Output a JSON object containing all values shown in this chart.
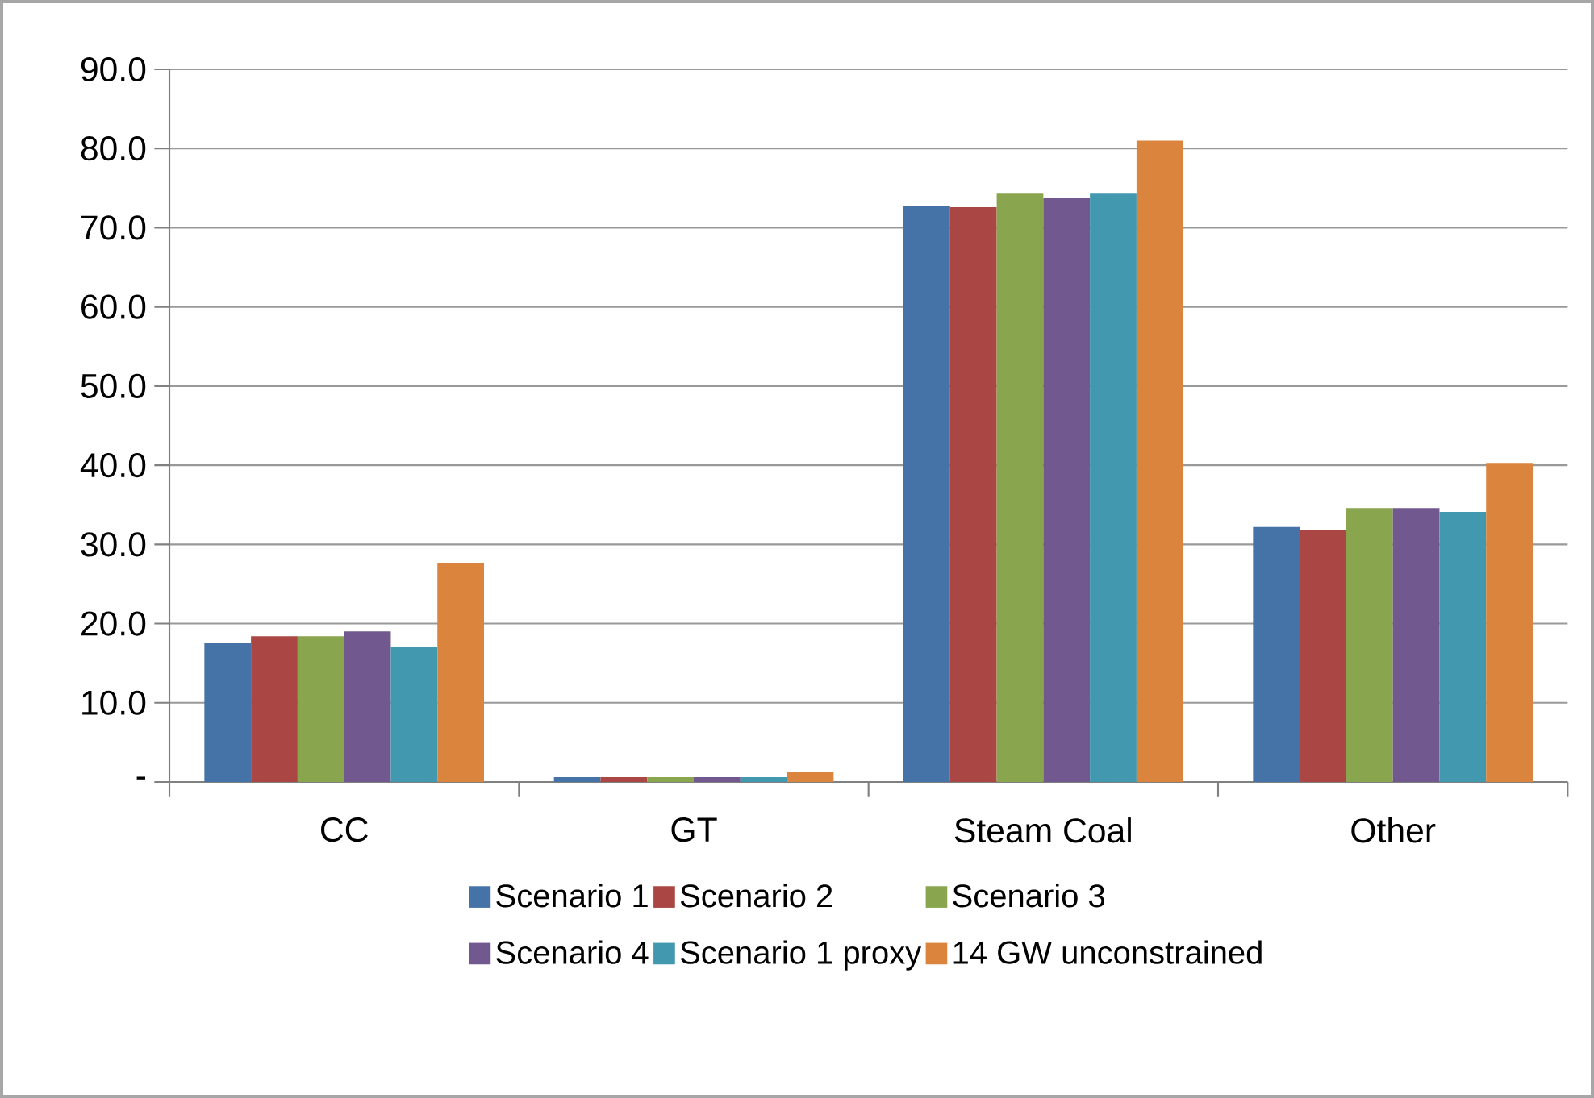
{
  "chart_data": {
    "type": "bar",
    "categories": [
      "CC",
      "GT",
      "Steam Coal",
      "Other"
    ],
    "series": [
      {
        "name": "Scenario 1",
        "color": "#4572a7",
        "values": [
          17.5,
          0.6,
          72.8,
          32.2
        ]
      },
      {
        "name": "Scenario 2",
        "color": "#aa4643",
        "values": [
          18.4,
          0.6,
          72.6,
          31.8
        ]
      },
      {
        "name": "Scenario 3",
        "color": "#89a54e",
        "values": [
          18.4,
          0.6,
          74.3,
          34.6
        ]
      },
      {
        "name": "Scenario 4",
        "color": "#71588f",
        "values": [
          19.0,
          0.6,
          73.8,
          34.6
        ]
      },
      {
        "name": "Scenario 1 proxy",
        "color": "#4198af",
        "values": [
          17.1,
          0.6,
          74.3,
          34.1
        ]
      },
      {
        "name": "14 GW unconstrained",
        "color": "#db843d",
        "values": [
          27.7,
          1.3,
          81.0,
          40.3
        ]
      }
    ],
    "ylim": [
      0,
      90
    ],
    "yticks": [
      {
        "value": 0,
        "label": "-"
      },
      {
        "value": 10,
        "label": "10.0"
      },
      {
        "value": 20,
        "label": "20.0"
      },
      {
        "value": 30,
        "label": "30.0"
      },
      {
        "value": 40,
        "label": "40.0"
      },
      {
        "value": 50,
        "label": "50.0"
      },
      {
        "value": 60,
        "label": "60.0"
      },
      {
        "value": 70,
        "label": "70.0"
      },
      {
        "value": 80,
        "label": "80.0"
      },
      {
        "value": 90,
        "label": "90.0"
      }
    ],
    "grid": "y",
    "legend": "bottom"
  }
}
